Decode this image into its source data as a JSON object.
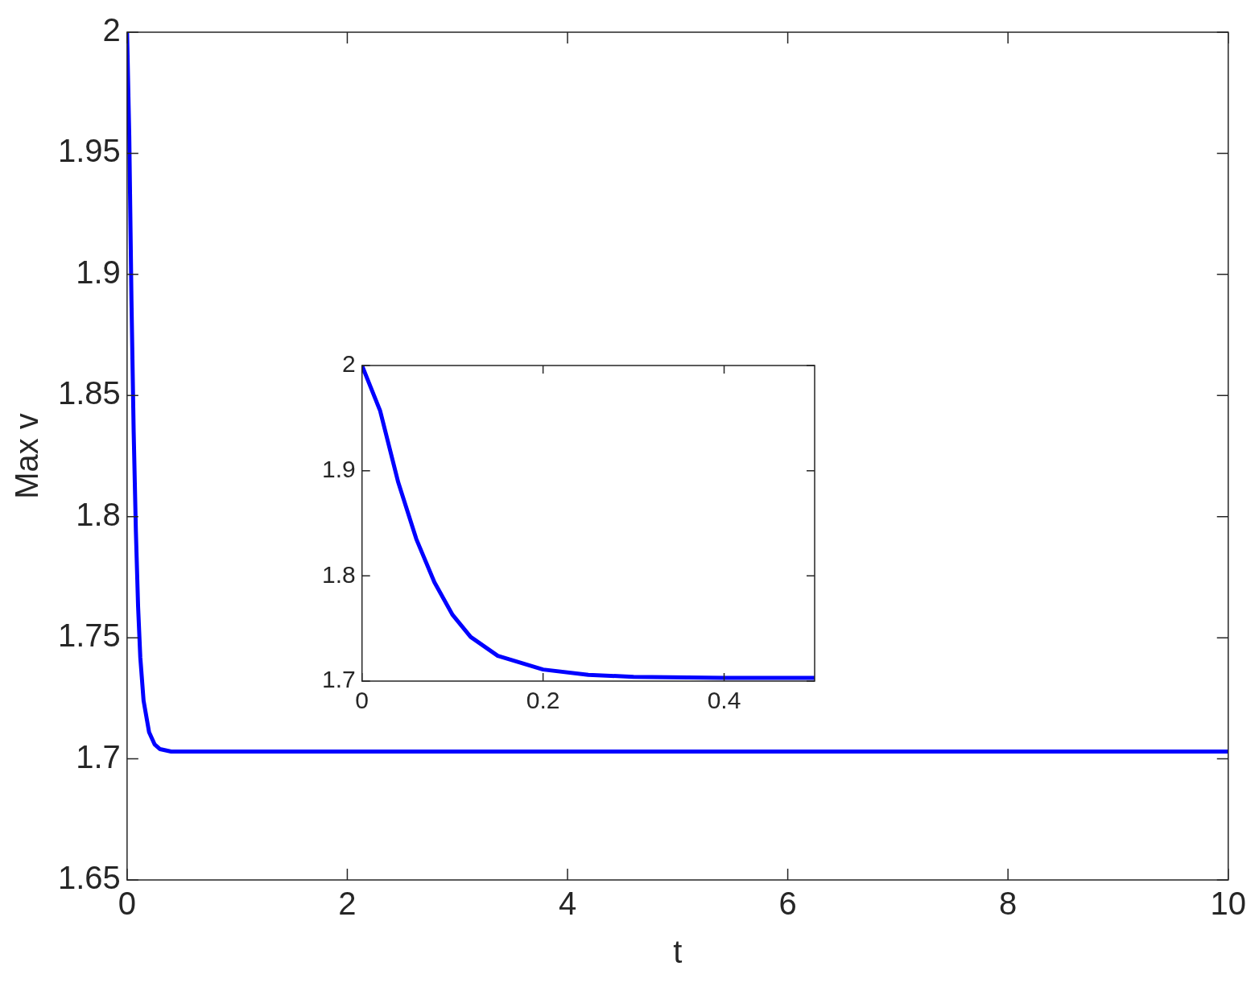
{
  "chart_data": [
    {
      "type": "line",
      "xlabel": "t",
      "ylabel": "Max v",
      "x": [
        0,
        0.02,
        0.04,
        0.06,
        0.08,
        0.1,
        0.12,
        0.15,
        0.2,
        0.25,
        0.3,
        0.4,
        0.5,
        10
      ],
      "values": [
        2,
        1.957,
        1.889,
        1.835,
        1.794,
        1.763,
        1.742,
        1.724,
        1.711,
        1.706,
        1.704,
        1.703,
        1.703,
        1.703
      ],
      "color": "#0000ff",
      "xlim": [
        0,
        10
      ],
      "ylim": [
        1.65,
        2
      ],
      "xticks": [
        0,
        2,
        4,
        6,
        8,
        10
      ],
      "yticks": [
        1.65,
        1.7,
        1.75,
        1.8,
        1.85,
        1.9,
        1.95,
        2
      ]
    },
    {
      "type": "line",
      "x": [
        0,
        0.02,
        0.04,
        0.06,
        0.08,
        0.1,
        0.12,
        0.15,
        0.2,
        0.25,
        0.3,
        0.4,
        0.5
      ],
      "values": [
        2,
        1.957,
        1.889,
        1.835,
        1.794,
        1.763,
        1.742,
        1.724,
        1.711,
        1.706,
        1.704,
        1.703,
        1.703
      ],
      "color": "#0000ff",
      "xlim": [
        0,
        0.5
      ],
      "ylim": [
        1.7,
        2
      ],
      "xticks": [
        0,
        0.2,
        0.4
      ],
      "yticks": [
        1.7,
        1.8,
        1.9,
        2
      ]
    }
  ]
}
